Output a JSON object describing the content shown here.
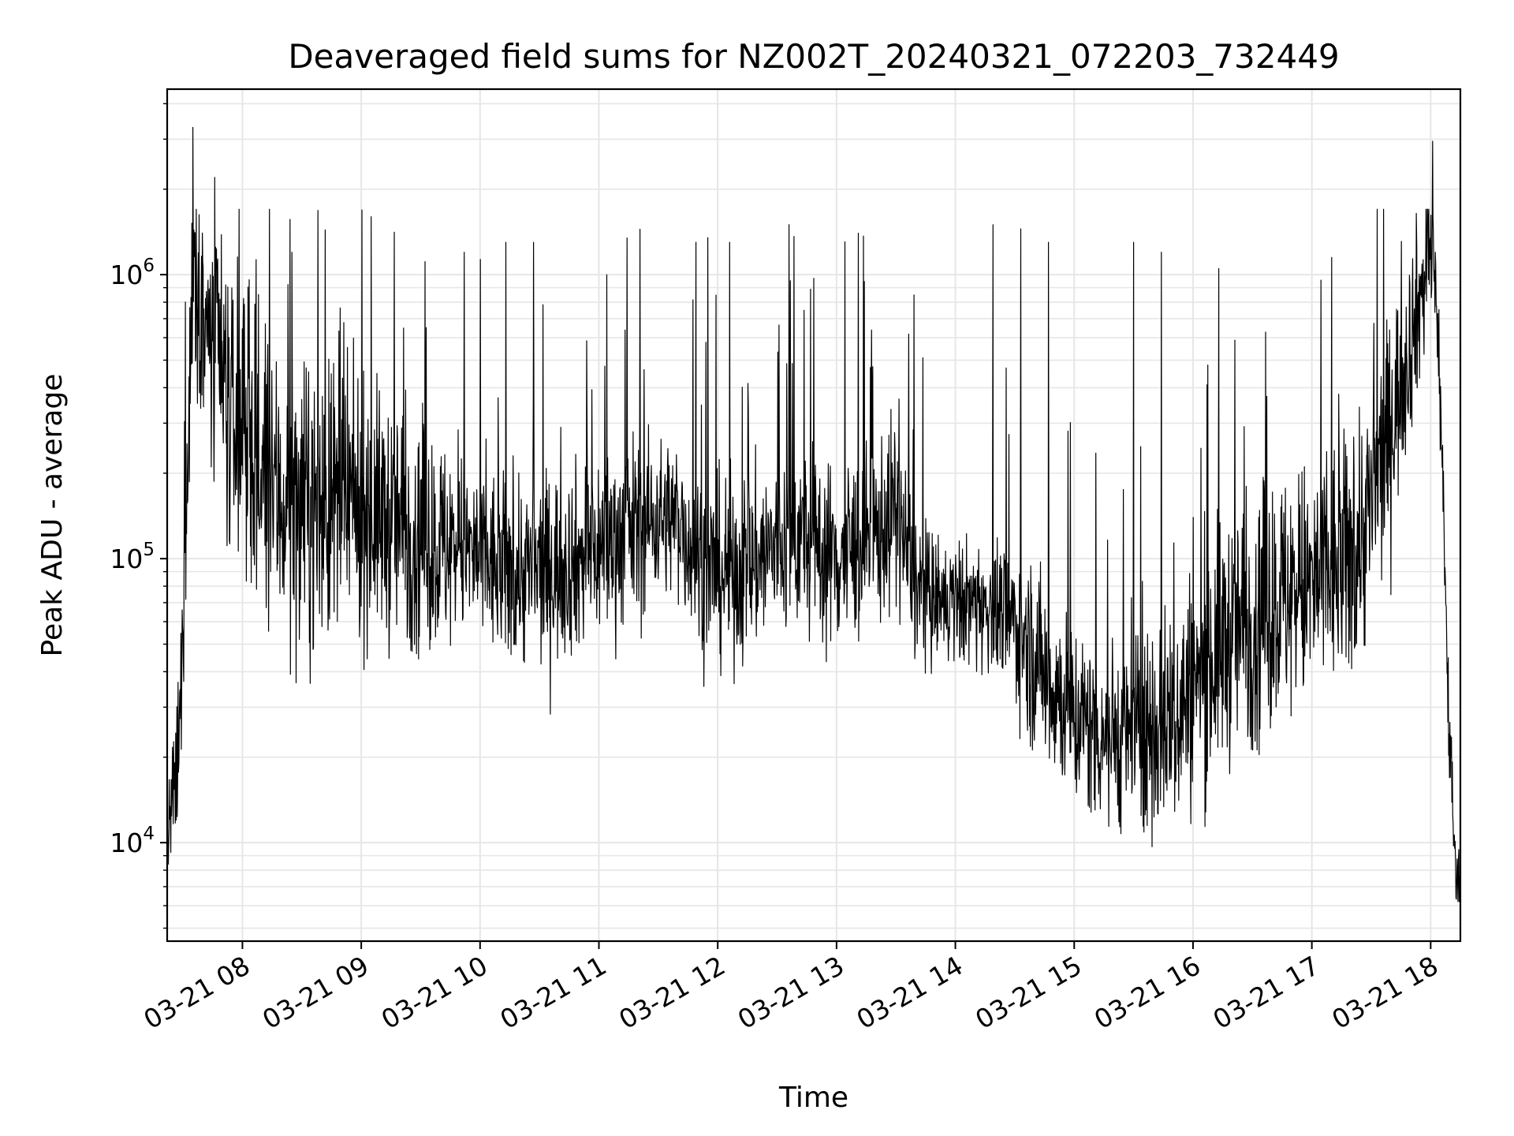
{
  "chart_data": {
    "type": "line",
    "title": "Deaveraged field sums for NZ002T_20240321_072203_732449",
    "xlabel": "Time",
    "ylabel": "Peak ADU - average",
    "y_scale": "log",
    "grid": true,
    "color": "#000000",
    "xlim": [
      "2024-03-21 07:22",
      "2024-03-21 18:15"
    ],
    "ylim": [
      4500,
      4500000
    ],
    "x_ticks": [
      "03-21 08",
      "03-21 09",
      "03-21 10",
      "03-21 11",
      "03-21 12",
      "03-21 13",
      "03-21 14",
      "03-21 15",
      "03-21 16",
      "03-21 17",
      "03-21 18"
    ],
    "y_ticks": [
      {
        "value": 10000,
        "base": "10",
        "exp": "4"
      },
      {
        "value": 100000,
        "base": "10",
        "exp": "5"
      },
      {
        "value": 1000000,
        "base": "10",
        "exp": "6"
      }
    ],
    "series": [
      {
        "x": [
          "2024-03-21 07:22",
          "2024-03-21 07:25",
          "2024-03-21 07:28",
          "2024-03-21 07:30",
          "2024-03-21 07:33",
          "2024-03-21 07:35",
          "2024-03-21 07:38",
          "2024-03-21 07:40",
          "2024-03-21 07:42",
          "2024-03-21 07:45",
          "2024-03-21 07:48",
          "2024-03-21 07:50",
          "2024-03-21 07:55",
          "2024-03-21 08:00",
          "2024-03-21 08:05",
          "2024-03-21 08:10",
          "2024-03-21 08:15",
          "2024-03-21 08:20",
          "2024-03-21 08:30",
          "2024-03-21 08:40",
          "2024-03-21 08:50",
          "2024-03-21 09:00",
          "2024-03-21 09:10",
          "2024-03-21 09:20",
          "2024-03-21 09:30",
          "2024-03-21 09:40",
          "2024-03-21 09:50",
          "2024-03-21 10:00",
          "2024-03-21 10:10",
          "2024-03-21 10:20",
          "2024-03-21 10:30",
          "2024-03-21 10:40",
          "2024-03-21 10:50",
          "2024-03-21 11:00",
          "2024-03-21 11:10",
          "2024-03-21 11:20",
          "2024-03-21 11:30",
          "2024-03-21 11:40",
          "2024-03-21 11:50",
          "2024-03-21 12:00",
          "2024-03-21 12:10",
          "2024-03-21 12:20",
          "2024-03-21 12:30",
          "2024-03-21 12:40",
          "2024-03-21 12:50",
          "2024-03-21 13:00",
          "2024-03-21 13:10",
          "2024-03-21 13:20",
          "2024-03-21 13:30",
          "2024-03-21 13:40",
          "2024-03-21 13:50",
          "2024-03-21 14:00",
          "2024-03-21 14:10",
          "2024-03-21 14:20",
          "2024-03-21 14:30",
          "2024-03-21 14:40",
          "2024-03-21 14:50",
          "2024-03-21 15:00",
          "2024-03-21 15:10",
          "2024-03-21 15:20",
          "2024-03-21 15:30",
          "2024-03-21 15:40",
          "2024-03-21 15:50",
          "2024-03-21 16:00",
          "2024-03-21 16:10",
          "2024-03-21 16:20",
          "2024-03-21 16:30",
          "2024-03-21 16:40",
          "2024-03-21 16:50",
          "2024-03-21 17:00",
          "2024-03-21 17:10",
          "2024-03-21 17:20",
          "2024-03-21 17:30",
          "2024-03-21 17:40",
          "2024-03-21 17:50",
          "2024-03-21 18:00",
          "2024-03-21 18:03",
          "2024-03-21 18:06",
          "2024-03-21 18:09",
          "2024-03-21 18:12",
          "2024-03-21 18:15"
        ],
        "baseline": [
          10000,
          14000,
          20000,
          60000,
          300000,
          1200000,
          1000000,
          750000,
          600000,
          500000,
          450000,
          400000,
          300000,
          250000,
          200000,
          180000,
          170000,
          160000,
          150000,
          150000,
          150000,
          150000,
          140000,
          130000,
          120000,
          110000,
          110000,
          100000,
          90000,
          90000,
          90000,
          95000,
          100000,
          110000,
          120000,
          130000,
          140000,
          140000,
          100000,
          90000,
          90000,
          100000,
          110000,
          120000,
          110000,
          100000,
          110000,
          120000,
          150000,
          80000,
          70000,
          70000,
          70000,
          65000,
          60000,
          45000,
          35000,
          28000,
          25000,
          24000,
          24000,
          25000,
          28000,
          35000,
          45000,
          55000,
          60000,
          70000,
          75000,
          80000,
          90000,
          100000,
          150000,
          300000,
          600000,
          1200000,
          900000,
          200000,
          30000,
          9000,
          7000
        ],
        "spread": [
          0.15,
          0.2,
          0.25,
          0.3,
          0.3,
          0.35,
          0.4,
          0.45,
          0.45,
          0.45,
          0.45,
          0.45,
          0.45,
          0.45,
          0.45,
          0.45,
          0.45,
          0.45,
          0.45,
          0.45,
          0.45,
          0.4,
          0.4,
          0.4,
          0.35,
          0.35,
          0.3,
          0.3,
          0.3,
          0.3,
          0.3,
          0.3,
          0.3,
          0.3,
          0.3,
          0.3,
          0.25,
          0.25,
          0.3,
          0.3,
          0.3,
          0.3,
          0.3,
          0.3,
          0.3,
          0.3,
          0.3,
          0.3,
          0.3,
          0.25,
          0.2,
          0.2,
          0.2,
          0.2,
          0.25,
          0.3,
          0.3,
          0.3,
          0.3,
          0.3,
          0.3,
          0.35,
          0.35,
          0.4,
          0.4,
          0.4,
          0.4,
          0.4,
          0.4,
          0.4,
          0.4,
          0.4,
          0.4,
          0.35,
          0.3,
          0.25,
          0.2,
          0.2,
          0.2,
          0.15,
          0.15
        ],
        "spikes": [
          [
            "2024-03-21 07:35",
            3300000
          ],
          [
            "2024-03-21 07:46",
            2200000
          ],
          [
            "2024-03-21 08:25",
            1200000
          ],
          [
            "2024-03-21 09:05",
            1600000
          ],
          [
            "2024-03-21 09:52",
            1200000
          ],
          [
            "2024-03-21 10:13",
            1300000
          ],
          [
            "2024-03-21 10:27",
            1300000
          ],
          [
            "2024-03-21 11:04",
            1000000
          ],
          [
            "2024-03-21 11:49",
            1300000
          ],
          [
            "2024-03-21 11:55",
            1350000
          ],
          [
            "2024-03-21 12:06",
            1300000
          ],
          [
            "2024-03-21 12:36",
            1500000
          ],
          [
            "2024-03-21 13:11",
            1400000
          ],
          [
            "2024-03-21 14:19",
            1500000
          ],
          [
            "2024-03-21 14:33",
            1450000
          ],
          [
            "2024-03-21 14:47",
            1300000
          ],
          [
            "2024-03-21 15:30",
            1300000
          ],
          [
            "2024-03-21 15:44",
            1200000
          ],
          [
            "2024-03-21 16:13",
            1050000
          ],
          [
            "2024-03-21 17:10",
            1150000
          ],
          [
            "2024-03-21 17:33",
            1700000
          ],
          [
            "2024-03-21 18:01",
            2950000
          ]
        ]
      }
    ]
  }
}
